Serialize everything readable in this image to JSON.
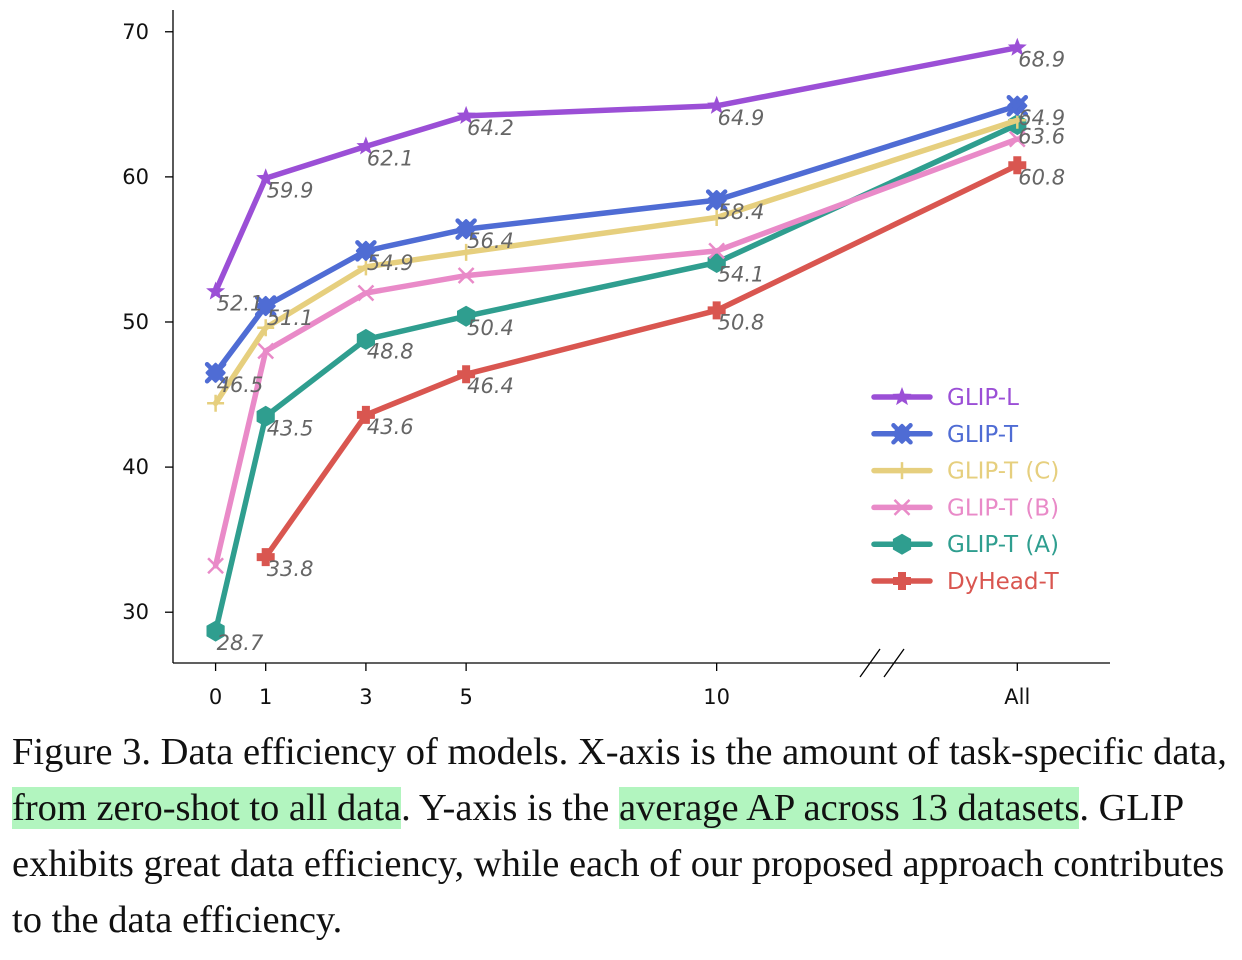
{
  "chart_data": {
    "type": "line",
    "categories": [
      "0",
      "1",
      "3",
      "5",
      "10",
      "All"
    ],
    "x_positions": [
      0,
      1,
      3,
      5,
      10,
      16
    ],
    "xlabel": "",
    "ylabel": "",
    "yticks": [
      30,
      40,
      50,
      60,
      70
    ],
    "ylim": [
      26.5,
      71.5
    ],
    "xlim": [
      -0.85,
      17.85
    ],
    "axis_break_between": [
      "10",
      "All"
    ],
    "grid": false,
    "legend_position": "center-right",
    "series": [
      {
        "name": "GLIP-L",
        "color": "#9b4fd6",
        "marker": "star",
        "x": [
          0,
          1,
          3,
          5,
          10,
          16
        ],
        "values": [
          52.1,
          59.9,
          62.1,
          64.2,
          64.9,
          68.9
        ],
        "labels": [
          "52.1",
          "59.9",
          "62.1",
          "64.2",
          "64.9",
          "68.9"
        ]
      },
      {
        "name": "GLIP-T",
        "color": "#4f6cd4",
        "marker": "diamond",
        "x": [
          0,
          1,
          3,
          5,
          10,
          16
        ],
        "values": [
          46.5,
          51.1,
          54.9,
          56.4,
          58.4,
          64.9
        ],
        "labels": [
          "46.5",
          "51.1",
          "54.9",
          "56.4",
          "58.4",
          "64.9"
        ]
      },
      {
        "name": "GLIP-T (C)",
        "color": "#e6cf7e",
        "marker": "plus",
        "x": [
          0,
          1,
          3,
          5,
          10,
          16
        ],
        "values": [
          44.4,
          49.6,
          53.8,
          54.8,
          57.2,
          63.9
        ],
        "labels": []
      },
      {
        "name": "GLIP-T (B)",
        "color": "#e98ac8",
        "marker": "x",
        "x": [
          0,
          1,
          3,
          5,
          10,
          16
        ],
        "values": [
          33.2,
          48.0,
          52.0,
          53.2,
          54.9,
          62.6
        ],
        "labels": []
      },
      {
        "name": "GLIP-T (A)",
        "color": "#2f9e8f",
        "marker": "hexagon",
        "x": [
          0,
          1,
          3,
          5,
          10,
          16
        ],
        "values": [
          28.7,
          43.5,
          48.8,
          50.4,
          54.1,
          63.6
        ],
        "labels": [
          "28.7",
          "43.5",
          "48.8",
          "50.4",
          "54.1",
          "63.6"
        ]
      },
      {
        "name": "DyHead-T",
        "color": "#d95650",
        "marker": "cross",
        "x": [
          1,
          3,
          5,
          10,
          16
        ],
        "values": [
          33.8,
          43.6,
          46.4,
          50.8,
          60.8
        ],
        "labels": [
          "33.8",
          "43.6",
          "46.4",
          "50.8",
          "60.8"
        ]
      }
    ]
  },
  "caption": {
    "text_1": "Figure 3. Data efficiency of models. X-axis is the amount of task-specific data, ",
    "highlight_1": "from zero-shot to all data",
    "text_2": ".  Y-axis is the ",
    "highlight_2": "average AP across 13 datasets",
    "text_3": ". GLIP exhibits great data efficiency, while each of our proposed approach contributes to the data efficiency.",
    "highlight_color": "#b2f5bf"
  }
}
